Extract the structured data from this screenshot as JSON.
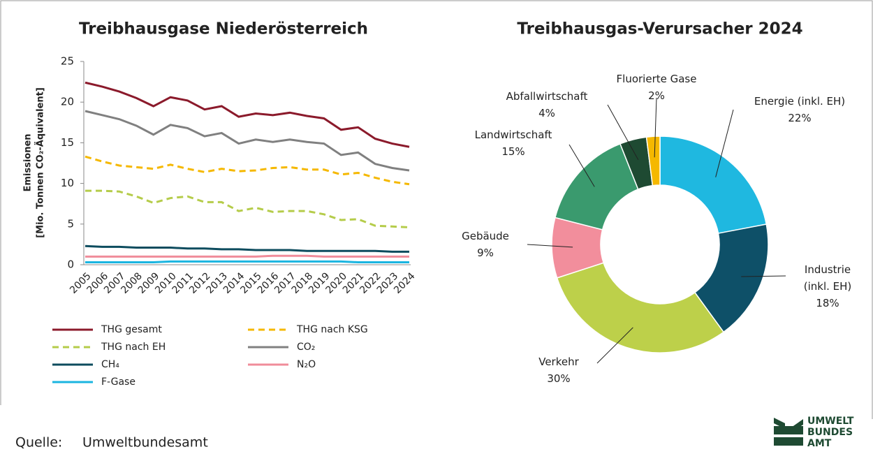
{
  "chart_data": [
    {
      "type": "line",
      "title": "Treibhausgase Niederösterreich",
      "ylabel": [
        "Emissionen",
        "[Mio. Tonnen CO₂-Äquivalent]"
      ],
      "categories": [
        "2005",
        "2006",
        "2007",
        "2008",
        "2009",
        "2010",
        "2011",
        "2012",
        "2013",
        "2014",
        "2015",
        "2016",
        "2017",
        "2018",
        "2019",
        "2020",
        "2021",
        "2022",
        "2023",
        "2024"
      ],
      "ylim": [
        0,
        25
      ],
      "yticks": [
        0,
        5,
        10,
        15,
        20,
        25
      ],
      "series": [
        {
          "name": "THG gesamt",
          "color": "#8b1a2b",
          "dashed": false,
          "values": [
            22.4,
            21.9,
            21.3,
            20.5,
            19.5,
            20.6,
            20.2,
            19.1,
            19.5,
            18.2,
            18.6,
            18.4,
            18.7,
            18.3,
            18.0,
            16.6,
            16.9,
            15.5,
            14.9,
            14.5
          ]
        },
        {
          "name": "THG nach KSG",
          "color": "#f5b800",
          "dashed": true,
          "values": [
            13.3,
            12.7,
            12.2,
            12.0,
            11.8,
            12.3,
            11.8,
            11.4,
            11.8,
            11.5,
            11.6,
            11.9,
            12.0,
            11.7,
            11.7,
            11.1,
            11.3,
            10.7,
            10.2,
            9.9
          ]
        },
        {
          "name": "THG nach EH",
          "color": "#b5cc4a",
          "dashed": true,
          "values": [
            9.1,
            9.1,
            9.0,
            8.4,
            7.6,
            8.2,
            8.4,
            7.7,
            7.7,
            6.6,
            7.0,
            6.5,
            6.6,
            6.6,
            6.2,
            5.5,
            5.6,
            4.8,
            4.7,
            4.6
          ]
        },
        {
          "name": "CO₂",
          "color": "#808080",
          "dashed": false,
          "values": [
            18.9,
            18.4,
            17.9,
            17.1,
            16.0,
            17.2,
            16.8,
            15.8,
            16.2,
            14.9,
            15.4,
            15.1,
            15.4,
            15.1,
            14.9,
            13.5,
            13.8,
            12.4,
            11.9,
            11.6
          ]
        },
        {
          "name": "CH₄",
          "color": "#0d4c5e",
          "dashed": false,
          "values": [
            2.3,
            2.2,
            2.2,
            2.1,
            2.1,
            2.1,
            2.0,
            2.0,
            1.9,
            1.9,
            1.8,
            1.8,
            1.8,
            1.7,
            1.7,
            1.7,
            1.7,
            1.7,
            1.6,
            1.6
          ]
        },
        {
          "name": "N₂O",
          "color": "#f08c9a",
          "dashed": false,
          "values": [
            1.0,
            1.0,
            1.0,
            1.0,
            1.0,
            1.0,
            1.0,
            1.0,
            1.0,
            1.0,
            1.0,
            1.1,
            1.1,
            1.1,
            1.0,
            1.0,
            1.0,
            1.0,
            1.0,
            1.0
          ]
        },
        {
          "name": "F-Gase",
          "color": "#1bb5e0",
          "dashed": false,
          "values": [
            0.3,
            0.3,
            0.3,
            0.3,
            0.3,
            0.4,
            0.4,
            0.4,
            0.4,
            0.4,
            0.4,
            0.4,
            0.4,
            0.4,
            0.4,
            0.4,
            0.3,
            0.3,
            0.3,
            0.3
          ]
        }
      ]
    },
    {
      "type": "donut",
      "title": "Treibhausgas-Verursacher 2024",
      "categories": [
        "Energie (inkl. EH)",
        "Industrie (inkl. EH)",
        "Verkehr",
        "Gebäude",
        "Landwirtschaft",
        "Abfallwirtschaft",
        "Fluorierte Gase"
      ],
      "values": [
        22,
        18,
        30,
        9,
        15,
        4,
        2
      ],
      "value_labels": [
        "22%",
        "18%",
        "30%",
        "9%",
        "15%",
        "4%",
        "2%"
      ],
      "colors": [
        "#1fb8e0",
        "#0e5068",
        "#bdd04a",
        "#f28e9c",
        "#3a9a6e",
        "#1e4a32",
        "#f5b800"
      ]
    }
  ],
  "source": {
    "label": "Quelle:",
    "text": "Umweltbundesamt"
  },
  "logo": [
    "UMWELT",
    "BUNDES",
    "AMT"
  ]
}
